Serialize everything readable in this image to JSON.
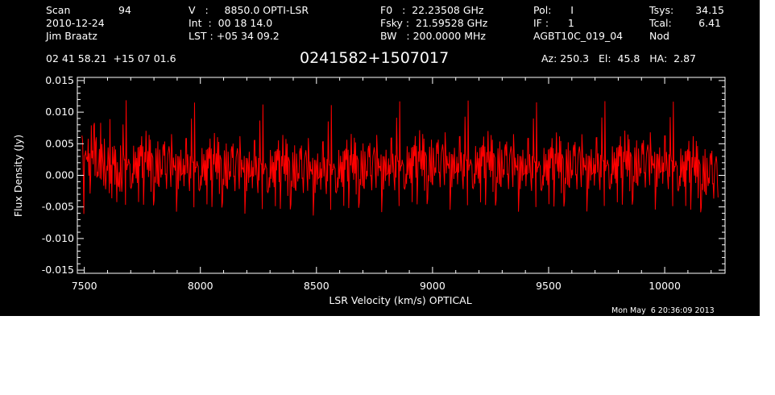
{
  "header": {
    "col1": {
      "scan_label": "Scan",
      "scan_value": "94",
      "date": "2010-12-24",
      "observer": "Jim Braatz"
    },
    "col2": {
      "line1": "V   :     8850.0 OPTI-LSR",
      "line2": "Int  :  00 18 14.0",
      "line3": "LST : +05 34 09.2"
    },
    "col3": {
      "line1": "F0   :  22.23508 GHz",
      "line2": "Fsky :  21.59528 GHz",
      "line3": "BW   : 200.0000 MHz"
    },
    "col4": {
      "line1": "Pol:      I",
      "line2": "IF :      1",
      "line3": "AGBT10C_019_04"
    },
    "col5": {
      "tsys_label": "Tsys:",
      "tsys_value": "34.15",
      "tcal_label": "Tcal:",
      "tcal_value": "6.41",
      "mode": "Nod"
    },
    "coords": "02 41 58.21  +15 07 01.6",
    "source": "0241582+1507017",
    "pointing": "Az: 250.3   El:  45.8   HA:  2.87",
    "timestamp": "Mon May  6 20:36:09 2013"
  },
  "colors": {
    "background": "#000000",
    "foreground": "#ffffff",
    "trace": "#ff0000"
  },
  "chart_data": {
    "type": "line",
    "title": "0241582+1507017",
    "xlabel": "LSR Velocity (km/s) OPTICAL",
    "ylabel": "Flux Density (Jy)",
    "xlim": [
      7470,
      10260
    ],
    "ylim": [
      -0.0155,
      0.0155
    ],
    "x_ticks": [
      7500,
      8000,
      8500,
      9000,
      9500,
      10000
    ],
    "x_tick_labels": [
      "7500",
      "8000",
      "8500",
      "9000",
      "9500",
      "10000"
    ],
    "y_ticks": [
      0.015,
      0.01,
      0.005,
      0.0,
      -0.005,
      -0.01,
      -0.015
    ],
    "y_tick_labels": [
      "0.015",
      "0.010",
      "0.005",
      "0.000",
      "-0.005",
      "-0.010",
      "-0.015"
    ],
    "grid": false,
    "series": [
      {
        "color": "#ff0000",
        "x_start": 7490,
        "x_end": 10230,
        "n_points": 1024,
        "baseline": [
          [
            7490,
            0.0035
          ],
          [
            7600,
            0.0005
          ],
          [
            8000,
            0.0
          ],
          [
            8500,
            -0.0005
          ],
          [
            9000,
            0.0005
          ],
          [
            9500,
            0.0
          ],
          [
            10000,
            0.0005
          ],
          [
            10230,
            -0.0015
          ]
        ],
        "noise_rms": 0.0035,
        "peak_max": 0.0125,
        "peak_min": -0.014
      }
    ]
  }
}
